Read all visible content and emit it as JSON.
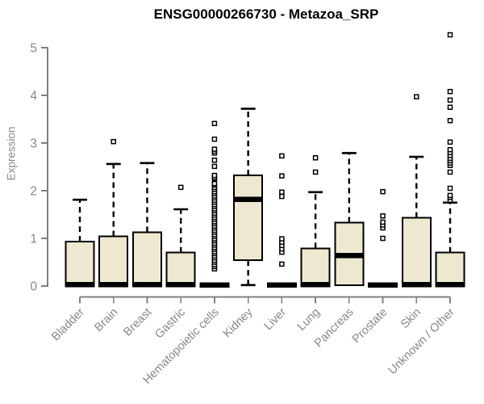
{
  "chart_data": {
    "type": "boxplot",
    "title": "ENSG00000266730 - Metazoa_SRP",
    "ylabel": "Expression",
    "xlabel": "",
    "ylim": [
      0,
      5
    ],
    "yticks": [
      0,
      1,
      2,
      3,
      4,
      5
    ],
    "grid": false,
    "legend": false,
    "colors": {
      "box_fill": "#EDE8CF",
      "box_border": "#000000",
      "axis": "#808080",
      "tick_text": "#878787",
      "title_text": "#000000"
    },
    "categories": [
      "Bladder",
      "Brain",
      "Breast",
      "Gastric",
      "Hematopoietic cells",
      "Kidney",
      "Liver",
      "Lung",
      "Pancreas",
      "Prostate",
      "Skin",
      "Unknown / Other"
    ],
    "series": [
      {
        "name": "Bladder",
        "low": 0,
        "q1": 0,
        "median": 0.03,
        "q3": 0.93,
        "high": 1.81,
        "outliers": []
      },
      {
        "name": "Brain",
        "low": 0,
        "q1": 0,
        "median": 0.03,
        "q3": 1.04,
        "high": 2.56,
        "outliers": [
          3.03
        ]
      },
      {
        "name": "Breast",
        "low": 0,
        "q1": 0,
        "median": 0.03,
        "q3": 1.13,
        "high": 2.58,
        "outliers": []
      },
      {
        "name": "Gastric",
        "low": 0,
        "q1": 0,
        "median": 0.03,
        "q3": 0.7,
        "high": 1.61,
        "outliers": [
          2.07
        ]
      },
      {
        "name": "Hematopoietic cells",
        "low": 0,
        "q1": 0,
        "median": 0.02,
        "q3": 0.05,
        "high": 0.07,
        "outliers": [
          0.36,
          0.41,
          0.45,
          0.5,
          0.54,
          0.59,
          0.63,
          0.68,
          0.72,
          0.77,
          0.81,
          0.86,
          0.9,
          0.95,
          0.99,
          1.04,
          1.08,
          1.13,
          1.17,
          1.22,
          1.26,
          1.31,
          1.35,
          1.4,
          1.44,
          1.49,
          1.53,
          1.58,
          1.62,
          1.67,
          1.71,
          1.76,
          1.8,
          1.85,
          1.89,
          1.94,
          1.98,
          2.03,
          2.07,
          2.12,
          2.15,
          2.25,
          2.28,
          2.32,
          2.51,
          2.64,
          2.79,
          2.83,
          2.87,
          3.08,
          3.41
        ]
      },
      {
        "name": "Kidney",
        "low": 0.02,
        "q1": 0.54,
        "median": 1.82,
        "q3": 2.32,
        "high": 3.72,
        "outliers": []
      },
      {
        "name": "Liver",
        "low": 0,
        "q1": 0,
        "median": 0.02,
        "q3": 0.05,
        "high": 0.07,
        "outliers": [
          0.46,
          0.71,
          0.78,
          0.85,
          0.92,
          0.99,
          1.88,
          1.97,
          2.31,
          2.73
        ]
      },
      {
        "name": "Lung",
        "low": 0,
        "q1": 0,
        "median": 0.03,
        "q3": 0.79,
        "high": 1.97,
        "outliers": [
          2.39,
          2.69
        ]
      },
      {
        "name": "Pancreas",
        "low": 0,
        "q1": 0.02,
        "median": 0.64,
        "q3": 1.33,
        "high": 2.79,
        "outliers": []
      },
      {
        "name": "Prostate",
        "low": 0,
        "q1": 0,
        "median": 0.02,
        "q3": 0.05,
        "high": 0.07,
        "outliers": [
          1.0,
          1.22,
          1.28,
          1.34,
          1.47,
          1.98
        ]
      },
      {
        "name": "Skin",
        "low": 0,
        "q1": 0,
        "median": 0.03,
        "q3": 1.43,
        "high": 2.71,
        "outliers": [
          3.97
        ]
      },
      {
        "name": "Unknown / Other",
        "low": 0,
        "q1": 0,
        "median": 0.03,
        "q3": 0.7,
        "high": 1.75,
        "outliers": [
          1.8,
          1.86,
          1.9,
          2.05,
          2.39,
          2.53,
          2.58,
          2.63,
          2.68,
          2.74,
          2.8,
          2.86,
          3.02,
          3.47,
          3.75,
          3.9,
          4.08,
          5.27
        ]
      }
    ]
  }
}
